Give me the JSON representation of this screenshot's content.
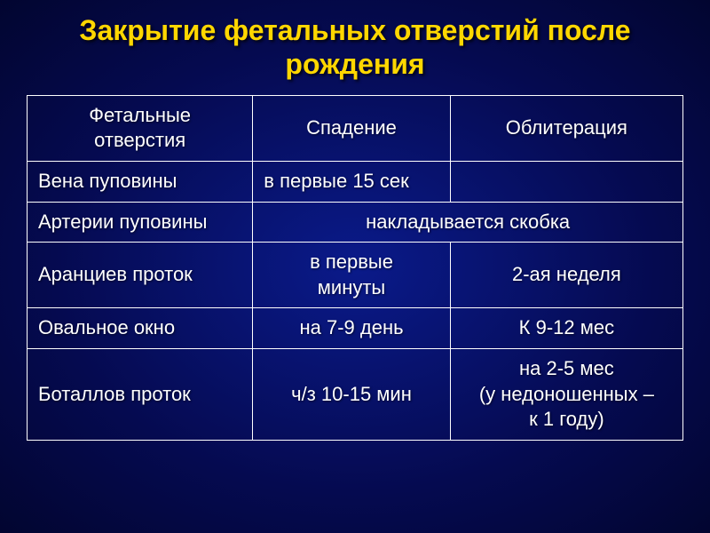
{
  "title": "Закрытие фетальных отверстий после рождения",
  "table": {
    "header": {
      "col1": "Фетальные\nотверстия",
      "col2": "Спадение",
      "col3": "Облитерация"
    },
    "rows": [
      {
        "label": "Вена пуповины",
        "col2": "в первые 15 сек",
        "col3": "",
        "merged": false
      },
      {
        "label": "Артерии пуповины",
        "merged_text": "накладывается скобка",
        "merged": true
      },
      {
        "label": "Аранциев проток",
        "col2": "в первые\nминуты",
        "col3": "2-ая неделя",
        "merged": false
      },
      {
        "label": "Овальное окно",
        "col2": "на 7-9 день",
        "col3": "К 9-12 мес",
        "merged": false
      },
      {
        "label": "Боталлов проток",
        "col2": "ч/з 10-15 мин",
        "col3": "на 2-5 мес\n(у недоношенных –\nк 1 году)",
        "merged": false
      }
    ]
  },
  "style": {
    "title_color": "#ffd700",
    "title_fontsize": 32,
    "text_color": "#ffffff",
    "border_color": "#ffffff",
    "cell_fontsize": 22,
    "background_gradient": [
      "#0a1a8a",
      "#050a50",
      "#020530"
    ]
  }
}
